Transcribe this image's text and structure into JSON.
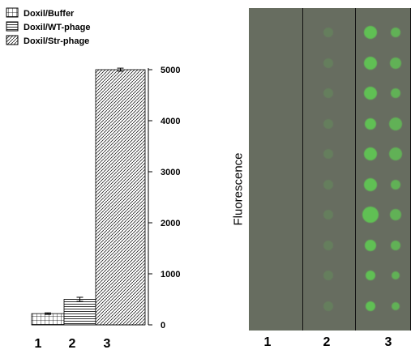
{
  "chart_data": {
    "type": "bar",
    "categories": [
      "1",
      "2",
      "3"
    ],
    "series": [
      {
        "name": "Doxil/Buffer",
        "values": [
          220,
          null,
          null
        ],
        "errors": [
          15,
          null,
          null
        ],
        "pattern": "grid"
      },
      {
        "name": "Doxil/WT-phage",
        "values": [
          null,
          500,
          null
        ],
        "errors": [
          null,
          40,
          null
        ],
        "pattern": "horizontal"
      },
      {
        "name": "Doxil/Str-phage",
        "values": [
          null,
          null,
          5000
        ],
        "errors": [
          null,
          null,
          30
        ],
        "pattern": "diagonal"
      }
    ],
    "ylabel": "Fluorescence",
    "ylim": [
      0,
      5000
    ],
    "yticks": [
      "0",
      "1000",
      "2000",
      "3000",
      "4000",
      "5000"
    ],
    "xticks": [
      "1",
      "2",
      "3"
    ],
    "legend_position": "top-left",
    "axis_side": "right"
  },
  "image_panel": {
    "background": "#676d60",
    "lane_labels": [
      "1",
      "2",
      "3"
    ],
    "spot_color": "#5fcf52",
    "lane1_spots": 0,
    "lane2_spots": 10,
    "lane3_spots": 20
  }
}
